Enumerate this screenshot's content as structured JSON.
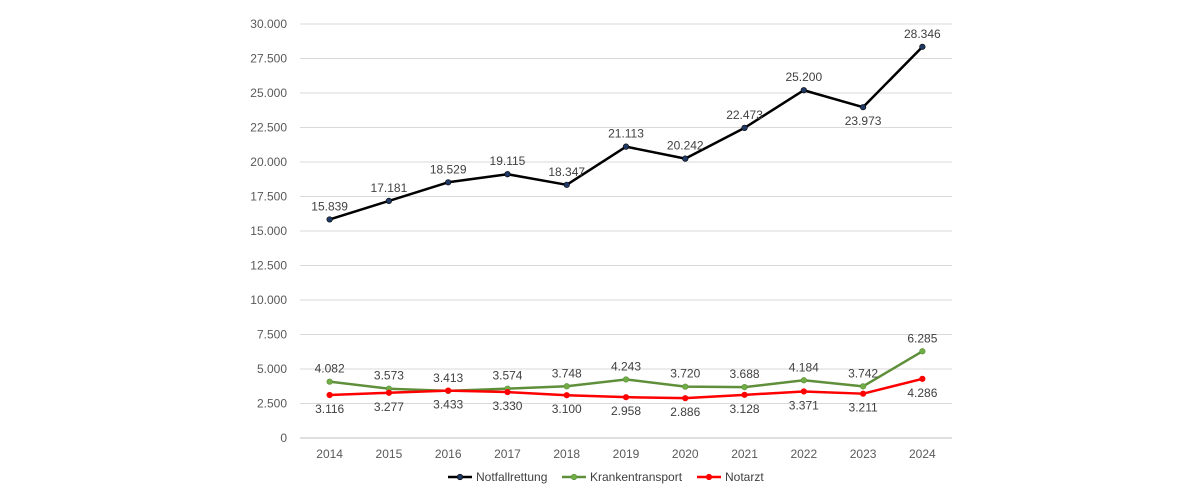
{
  "chart_data": {
    "type": "line",
    "title": "",
    "xlabel": "",
    "ylabel": "",
    "categories": [
      "2014",
      "2015",
      "2016",
      "2017",
      "2018",
      "2019",
      "2020",
      "2021",
      "2022",
      "2023",
      "2024"
    ],
    "ylim": [
      0,
      30000
    ],
    "yticks": [
      0,
      2500,
      5000,
      7500,
      10000,
      12500,
      15000,
      17500,
      20000,
      22500,
      25000,
      27500,
      30000
    ],
    "ytick_labels": [
      "0",
      "2.500",
      "5.000",
      "7.500",
      "10.000",
      "12.500",
      "15.000",
      "17.500",
      "20.000",
      "22.500",
      "25.000",
      "27.500",
      "30.000"
    ],
    "grid": true,
    "legend_position": "bottom",
    "series": [
      {
        "name": "Notfallrettung",
        "color": "#000000",
        "marker_color": "#1f3864",
        "label_position": "above",
        "values": [
          15839,
          17181,
          18529,
          19115,
          18347,
          21113,
          20242,
          22473,
          25200,
          23973,
          28346
        ],
        "labels": [
          "15.839",
          "17.181",
          "18.529",
          "19.115",
          "18.347",
          "21.113",
          "20.242",
          "22.473",
          "25.200",
          "23.973",
          "28.346"
        ],
        "label_below_index": [
          9
        ]
      },
      {
        "name": "Krankentransport",
        "color": "#5f8f3a",
        "marker_color": "#70ad47",
        "label_position": "above",
        "values": [
          4082,
          3573,
          3413,
          3574,
          3748,
          4243,
          3720,
          3688,
          4184,
          3742,
          6285
        ],
        "labels": [
          "4.082",
          "3.573",
          "3.413",
          "3.574",
          "3.748",
          "4.243",
          "3.720",
          "3.688",
          "4.184",
          "3.742",
          "6.285"
        ],
        "label_below_index": []
      },
      {
        "name": "Notarzt",
        "color": "#ff0000",
        "marker_color": "#ff0000",
        "label_position": "below",
        "values": [
          3116,
          3277,
          3433,
          3330,
          3100,
          2958,
          2886,
          3128,
          3371,
          3211,
          4286
        ],
        "labels": [
          "3.116",
          "3.277",
          "3.433",
          "3.330",
          "3.100",
          "2.958",
          "2.886",
          "3.128",
          "3.371",
          "3.211",
          "4.286"
        ],
        "label_below_index": []
      }
    ]
  }
}
